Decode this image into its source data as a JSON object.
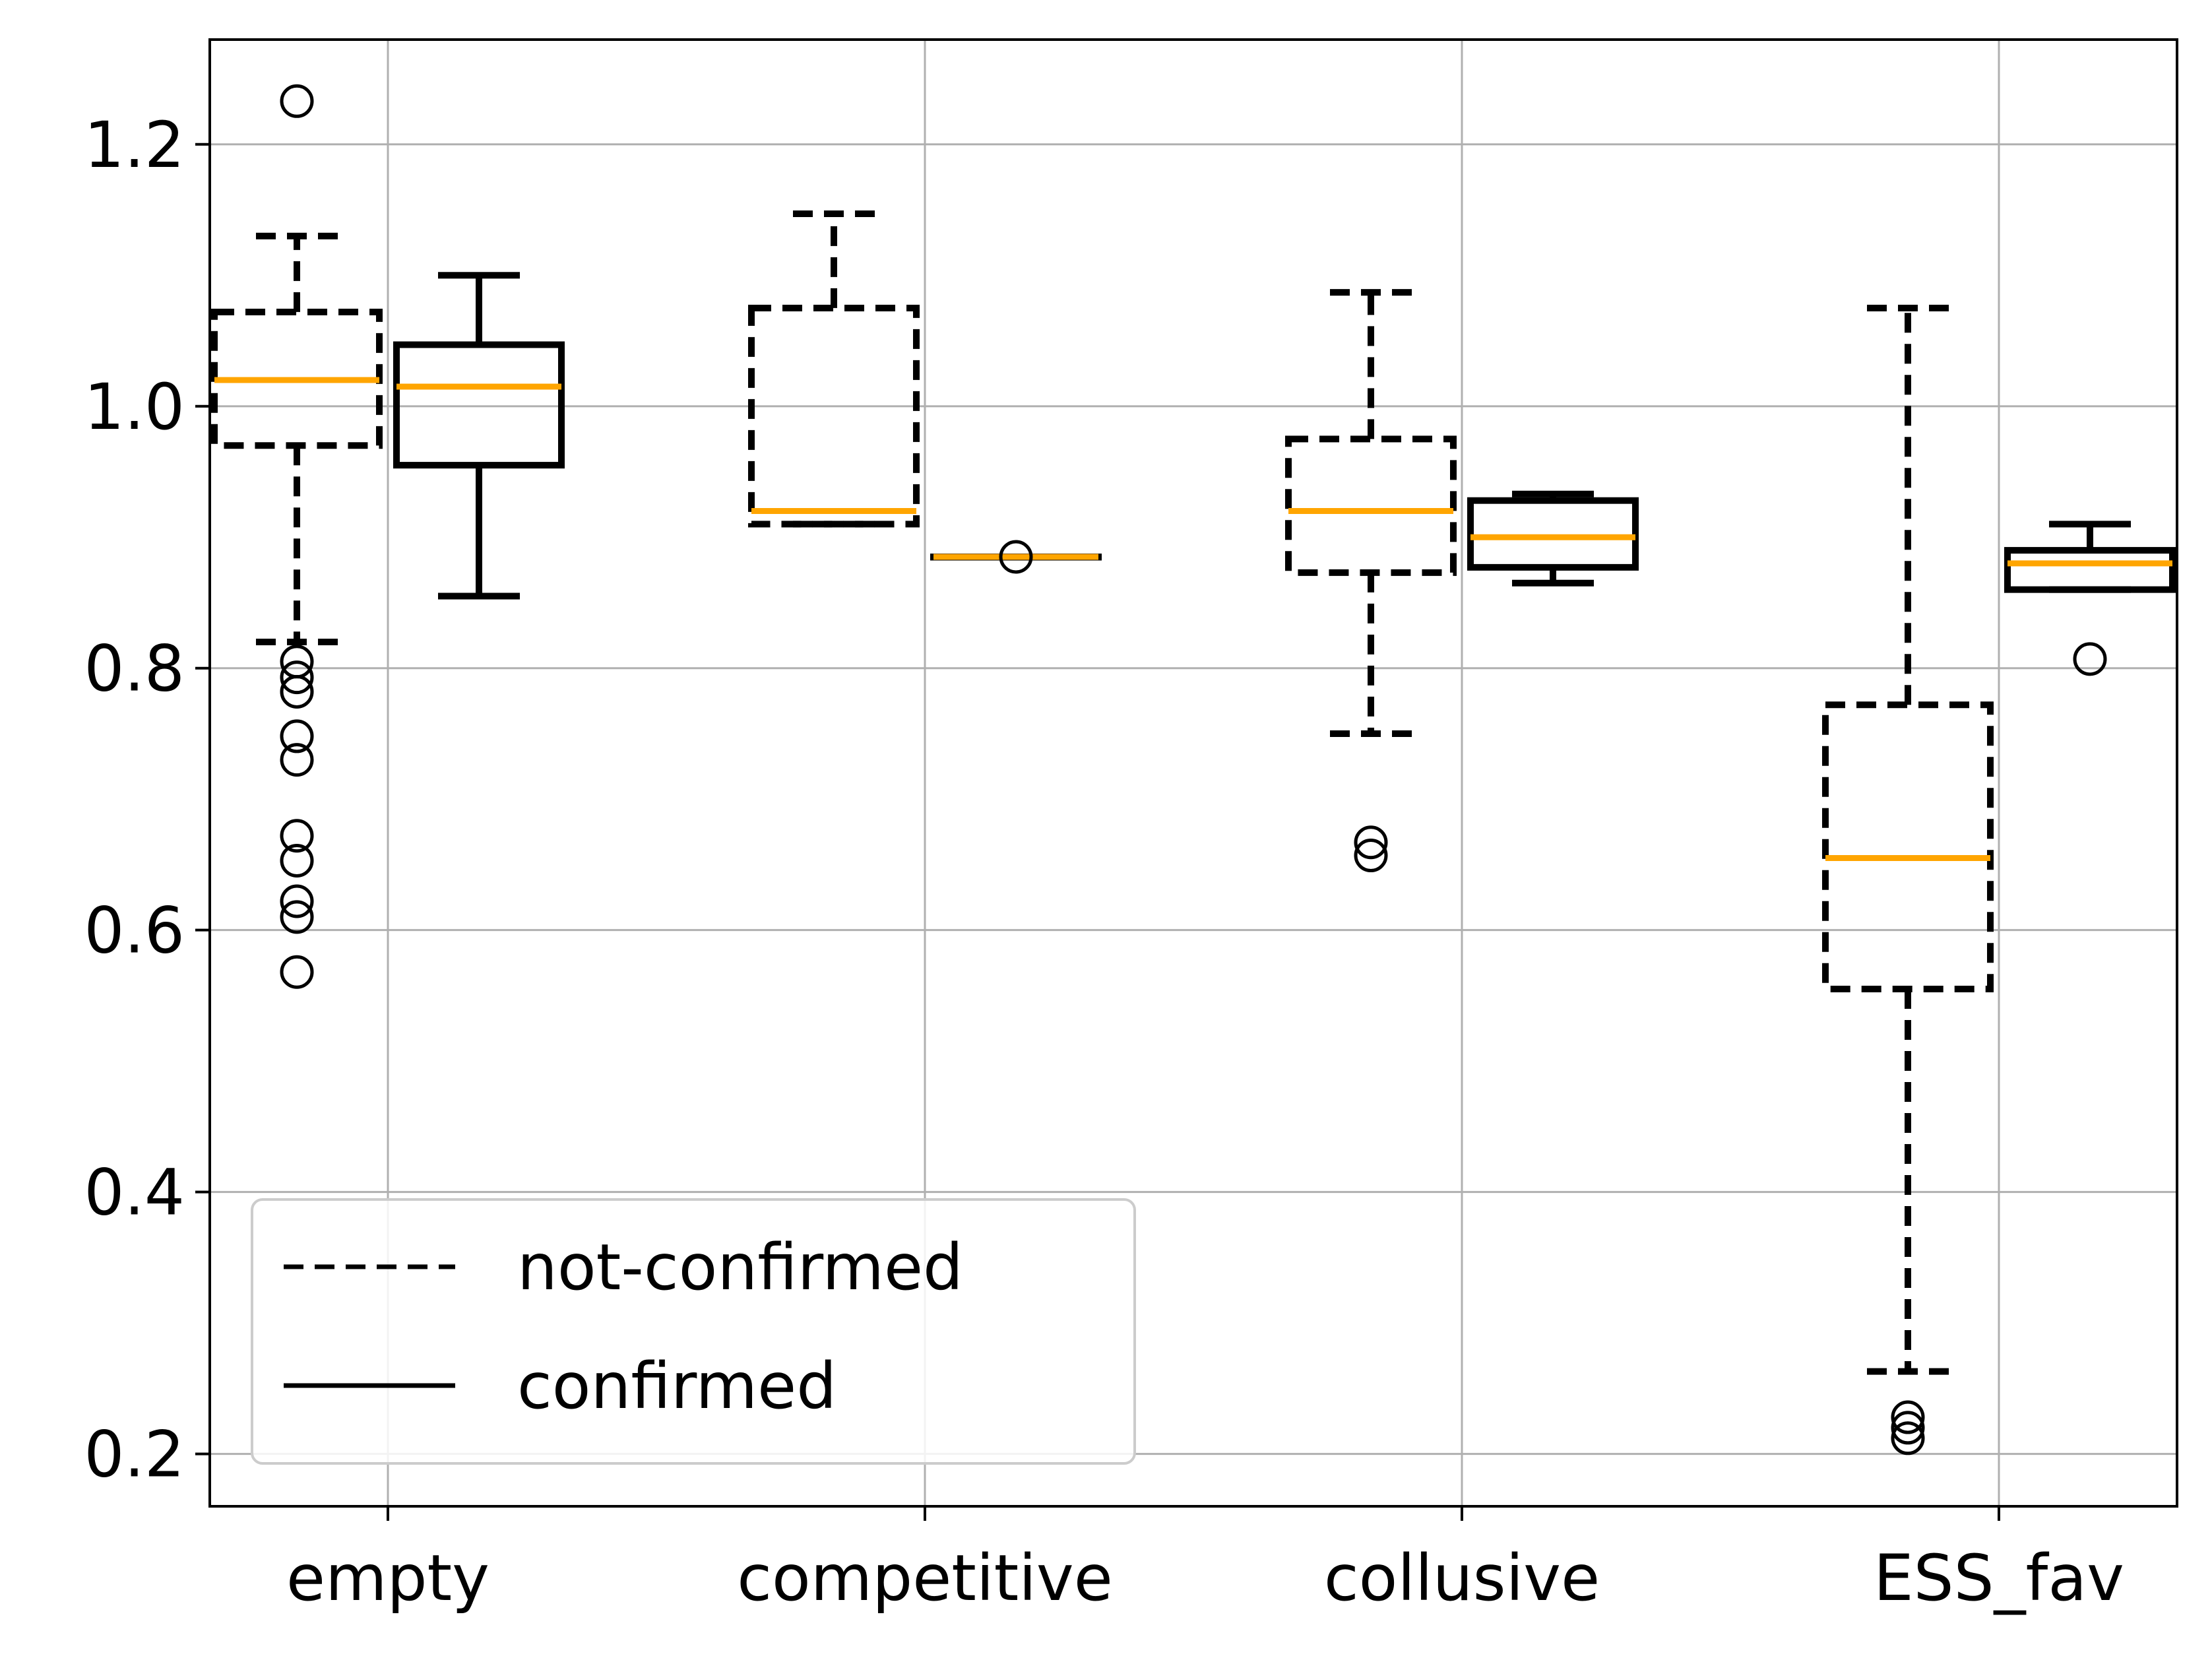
{
  "chart_data": {
    "type": "boxplot",
    "title": "",
    "xlabel": "",
    "ylabel": "",
    "categories": [
      "empty",
      "competitive",
      "collusive",
      "ESS_fav"
    ],
    "ylim": [
      0.16,
      1.28
    ],
    "yticks": [
      0.2,
      0.4,
      0.6,
      0.8,
      1.0,
      1.2
    ],
    "ytick_labels": [
      "0.2",
      "0.4",
      "0.6",
      "0.8",
      "1.0",
      "1.2"
    ],
    "grid": true,
    "legend_position": "lower-left",
    "series": [
      {
        "name": "not-confirmed",
        "line_style": "dashed",
        "boxes": [
          {
            "category": "empty",
            "whisker_low": 0.82,
            "q1": 0.97,
            "median": 1.02,
            "q3": 1.072,
            "whisker_high": 1.13,
            "outliers": [
              1.233,
              0.805,
              0.793,
              0.782,
              0.748,
              0.73,
              0.672,
              0.653,
              0.622,
              0.61,
              0.568
            ]
          },
          {
            "category": "competitive",
            "whisker_low": 0.91,
            "q1": 0.91,
            "median": 0.92,
            "q3": 1.075,
            "whisker_high": 1.147,
            "outliers": []
          },
          {
            "category": "collusive",
            "whisker_low": 0.75,
            "q1": 0.873,
            "median": 0.92,
            "q3": 0.975,
            "whisker_high": 1.087,
            "outliers": [
              0.667,
              0.657
            ]
          },
          {
            "category": "ESS_fav",
            "whisker_low": 0.263,
            "q1": 0.555,
            "median": 0.655,
            "q3": 0.772,
            "whisker_high": 1.075,
            "outliers": [
              0.228,
              0.22,
              0.212
            ]
          }
        ]
      },
      {
        "name": "confirmed",
        "line_style": "solid",
        "boxes": [
          {
            "category": "empty",
            "whisker_low": 0.855,
            "q1": 0.955,
            "median": 1.015,
            "q3": 1.047,
            "whisker_high": 1.1,
            "outliers": []
          },
          {
            "category": "competitive",
            "whisker_low": 0.885,
            "q1": 0.885,
            "median": 0.885,
            "q3": 0.885,
            "whisker_high": 0.885,
            "outliers": [
              0.885
            ]
          },
          {
            "category": "collusive",
            "whisker_low": 0.865,
            "q1": 0.877,
            "median": 0.9,
            "q3": 0.928,
            "whisker_high": 0.933,
            "outliers": []
          },
          {
            "category": "ESS_fav",
            "whisker_low": 0.86,
            "q1": 0.86,
            "median": 0.88,
            "q3": 0.89,
            "whisker_high": 0.91,
            "outliers": [
              0.807
            ]
          }
        ]
      }
    ],
    "colors": {
      "box": "#000000",
      "median": "#FFA500",
      "grid": "#b0b0b0",
      "legend_border": "#cccccc"
    }
  }
}
